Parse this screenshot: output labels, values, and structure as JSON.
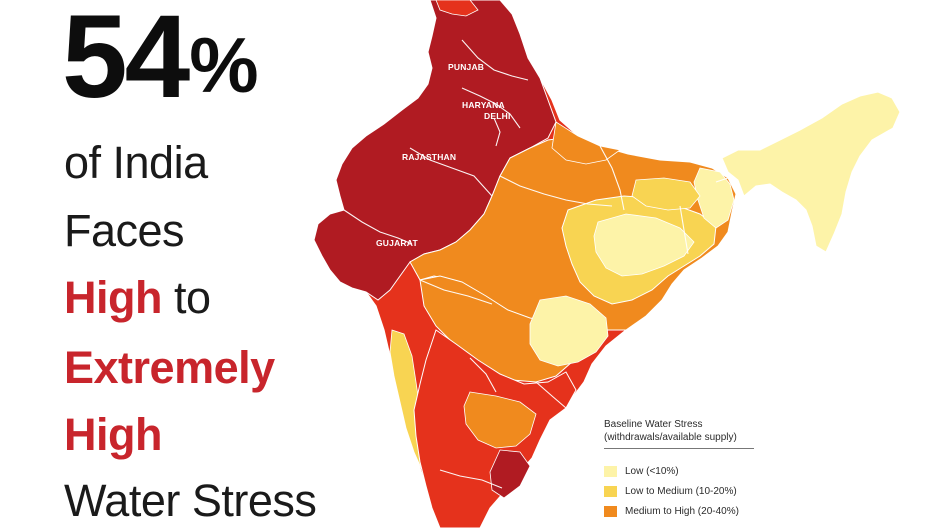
{
  "headline": {
    "percent_value": "54",
    "percent_sign": "%",
    "line1": "of India",
    "line2": "Faces",
    "line3_em": "High",
    "line3_rest": " to",
    "line4": "Extremely",
    "line5": "High",
    "line6": "Water Stress"
  },
  "map": {
    "state_labels": {
      "punjab": "PUNJAB",
      "haryana": "HARYANA",
      "delhi": "DELHI",
      "rajasthan": "RAJASTHAN",
      "gujarat": "GUJARAT"
    },
    "colors": {
      "extremely_high": "#b01b22",
      "high": "#e5321c",
      "medium_high": "#f08a1e",
      "low_medium": "#f8d452",
      "low": "#fdf3a8",
      "borders": "#ffffff"
    }
  },
  "legend": {
    "title": "Baseline Water Stress",
    "subtitle": "(withdrawals/available supply)",
    "items": [
      {
        "label": "Low (<10%)",
        "color": "#fdf3a8"
      },
      {
        "label": "Low to Medium (10-20%)",
        "color": "#f8d452"
      },
      {
        "label": "Medium to High (20-40%)",
        "color": "#f08a1e"
      }
    ]
  }
}
